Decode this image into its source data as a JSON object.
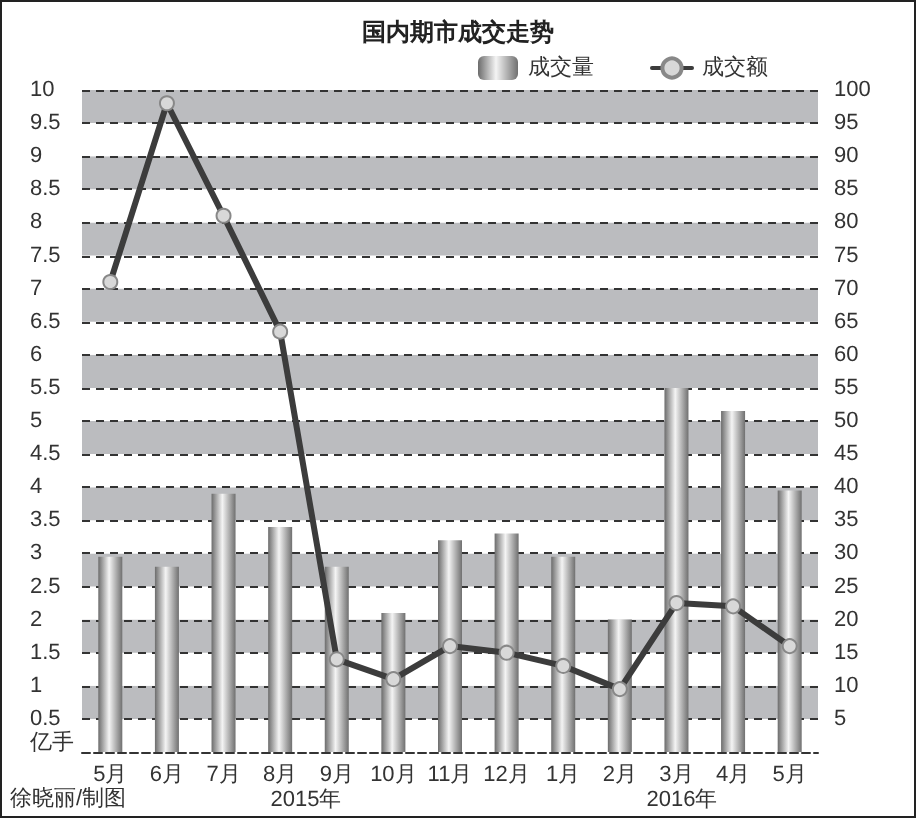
{
  "chart_data": {
    "type": "bar",
    "title": "国内期市成交走势",
    "categories": [
      "5月",
      "6月",
      "7月",
      "8月",
      "9月",
      "10月",
      "11月",
      "12月",
      "1月",
      "2月",
      "3月",
      "4月",
      "5月"
    ],
    "series": [
      {
        "name": "成交量",
        "color": "#b4b4b4",
        "values": [
          2.95,
          2.8,
          3.9,
          3.4,
          2.8,
          2.1,
          3.2,
          3.3,
          2.95,
          2.0,
          5.5,
          5.15,
          3.95
        ]
      },
      {
        "name": "成交额",
        "type": "line",
        "axis": "y2",
        "color": "#3c3c3c",
        "values": [
          71,
          98,
          81,
          63.5,
          14,
          11,
          16,
          15,
          13,
          9.5,
          22.5,
          22,
          16
        ]
      }
    ],
    "marker": "circle",
    "ylabel": "亿手",
    "ylim": [
      0,
      10
    ],
    "yticks": [
      0.5,
      1,
      1.5,
      2,
      2.5,
      3,
      3.5,
      4,
      4.5,
      5,
      5.5,
      6,
      6.5,
      7,
      7.5,
      8,
      8.5,
      9,
      9.5,
      10
    ],
    "y2lim": [
      0,
      100
    ],
    "y2ticks": [
      5,
      10,
      15,
      20,
      25,
      30,
      35,
      40,
      45,
      50,
      55,
      60,
      65,
      70,
      75,
      80,
      85,
      90,
      95,
      100
    ],
    "grid": "y",
    "legend": "top right",
    "annotations": [
      "徐晓丽/制图",
      "2015年",
      "2016年"
    ]
  }
}
